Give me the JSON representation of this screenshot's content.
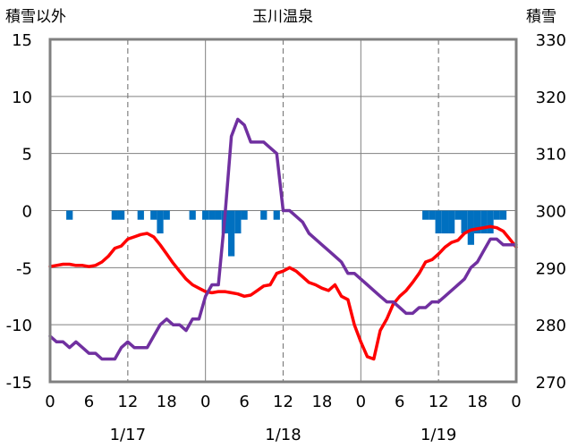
{
  "chart_data": {
    "type": "line",
    "title": "玉川温泉",
    "left_axis_label": "積雪以外",
    "right_axis_label": "積雪",
    "ylim_left": [
      -15,
      15
    ],
    "ylim_right": [
      270,
      330
    ],
    "y_ticks_left": [
      "15",
      "10",
      "5",
      "0",
      "-5",
      "-10",
      "-15"
    ],
    "y_ticks_right": [
      "330",
      "320",
      "310",
      "300",
      "290",
      "280",
      "270"
    ],
    "x_range_hours": [
      0,
      72
    ],
    "x_tick_labels": [
      "0",
      "6",
      "12",
      "18",
      "0",
      "6",
      "12",
      "18",
      "0",
      "6",
      "12",
      "18",
      "0"
    ],
    "date_labels": [
      {
        "text": "1/17",
        "hour": 12
      },
      {
        "text": "1/18",
        "hour": 36
      },
      {
        "text": "1/19",
        "hour": 60
      }
    ],
    "grid": "dashed vertical lines at 12:00, solid at day boundaries",
    "colors": {
      "temperature": "#ff0000",
      "snow_depth": "#7030a0",
      "precipitation": "#0070c0"
    },
    "series": [
      {
        "type": "line",
        "axis": "left",
        "color": "#ff0000",
        "x": [
          0,
          1,
          2,
          3,
          4,
          5,
          6,
          7,
          8,
          9,
          10,
          11,
          12,
          13,
          14,
          15,
          16,
          17,
          18,
          19,
          20,
          21,
          22,
          23,
          24,
          25,
          26,
          27,
          28,
          29,
          30,
          31,
          32,
          33,
          34,
          35,
          36,
          37,
          38,
          39,
          40,
          41,
          42,
          43,
          44,
          45,
          46,
          47,
          48,
          49,
          50,
          51,
          52,
          53,
          54,
          55,
          56,
          57,
          58,
          59,
          60,
          61,
          62,
          63,
          64,
          65,
          66,
          67,
          68,
          69,
          70,
          71,
          72
        ],
        "values": [
          -4.9,
          -4.8,
          -4.7,
          -4.7,
          -4.8,
          -4.8,
          -4.9,
          -4.8,
          -4.5,
          -4.0,
          -3.3,
          -3.1,
          -2.5,
          -2.3,
          -2.1,
          -2.0,
          -2.3,
          -3.0,
          -3.8,
          -4.6,
          -5.3,
          -6.0,
          -6.5,
          -6.8,
          -7.1,
          -7.2,
          -7.1,
          -7.1,
          -7.2,
          -7.3,
          -7.5,
          -7.4,
          -7.0,
          -6.6,
          -6.5,
          -5.5,
          -5.3,
          -5.0,
          -5.3,
          -5.8,
          -6.3,
          -6.5,
          -6.8,
          -7.0,
          -6.5,
          -7.5,
          -7.8,
          -10.0,
          -11.5,
          -12.8,
          -13.0,
          -10.5,
          -9.5,
          -8.2,
          -7.5,
          -7.0,
          -6.3,
          -5.5,
          -4.5,
          -4.3,
          -3.8,
          -3.2,
          -2.8,
          -2.6,
          -2.0,
          -1.7,
          -1.6,
          -1.5,
          -1.4,
          -1.5,
          -1.8,
          -2.5,
          -3.2
        ]
      },
      {
        "type": "line",
        "axis": "right",
        "color": "#7030a0",
        "x": [
          0,
          1,
          2,
          3,
          4,
          5,
          6,
          7,
          8,
          9,
          10,
          11,
          12,
          13,
          14,
          15,
          16,
          17,
          18,
          19,
          20,
          21,
          22,
          23,
          24,
          25,
          26,
          27,
          28,
          29,
          30,
          31,
          32,
          33,
          34,
          35,
          36,
          37,
          38,
          39,
          40,
          41,
          42,
          43,
          44,
          45,
          46,
          47,
          48,
          49,
          50,
          51,
          52,
          53,
          54,
          55,
          56,
          57,
          58,
          59,
          60,
          61,
          62,
          63,
          64,
          65,
          66,
          67,
          68,
          69,
          70,
          71,
          72
        ],
        "values": [
          278,
          277,
          277,
          276,
          277,
          276,
          275,
          275,
          274,
          274,
          274,
          276,
          277,
          276,
          276,
          276,
          278,
          280,
          281,
          280,
          280,
          279,
          281,
          281,
          285,
          287,
          287,
          299,
          313,
          316,
          315,
          312,
          312,
          312,
          311,
          310,
          300,
          300,
          299,
          298,
          296,
          295,
          294,
          293,
          292,
          291,
          289,
          289,
          288,
          287,
          286,
          285,
          284,
          284,
          283,
          282,
          282,
          283,
          283,
          284,
          284,
          285,
          286,
          287,
          288,
          290,
          291,
          293,
          295,
          295,
          294,
          294,
          294
        ]
      },
      {
        "type": "bar",
        "axis": "left",
        "color": "#0070c0",
        "x": [
          3,
          10,
          11,
          14,
          16,
          17,
          18,
          22,
          24,
          25,
          26,
          27,
          28,
          29,
          30,
          33,
          35,
          58,
          59,
          60,
          61,
          62,
          63,
          64,
          65,
          66,
          67,
          68,
          69,
          70
        ],
        "values": [
          -0.8,
          -0.8,
          -0.8,
          -0.8,
          -0.8,
          -2.0,
          -0.8,
          -0.8,
          -0.8,
          -0.8,
          -0.8,
          -2.0,
          -4.0,
          -2.0,
          -0.8,
          -0.8,
          -0.8,
          -0.8,
          -0.8,
          -2.0,
          -2.0,
          -2.0,
          -0.8,
          -2.0,
          -3.0,
          -2.0,
          -2.0,
          -2.0,
          -0.8,
          -0.8
        ]
      }
    ]
  }
}
